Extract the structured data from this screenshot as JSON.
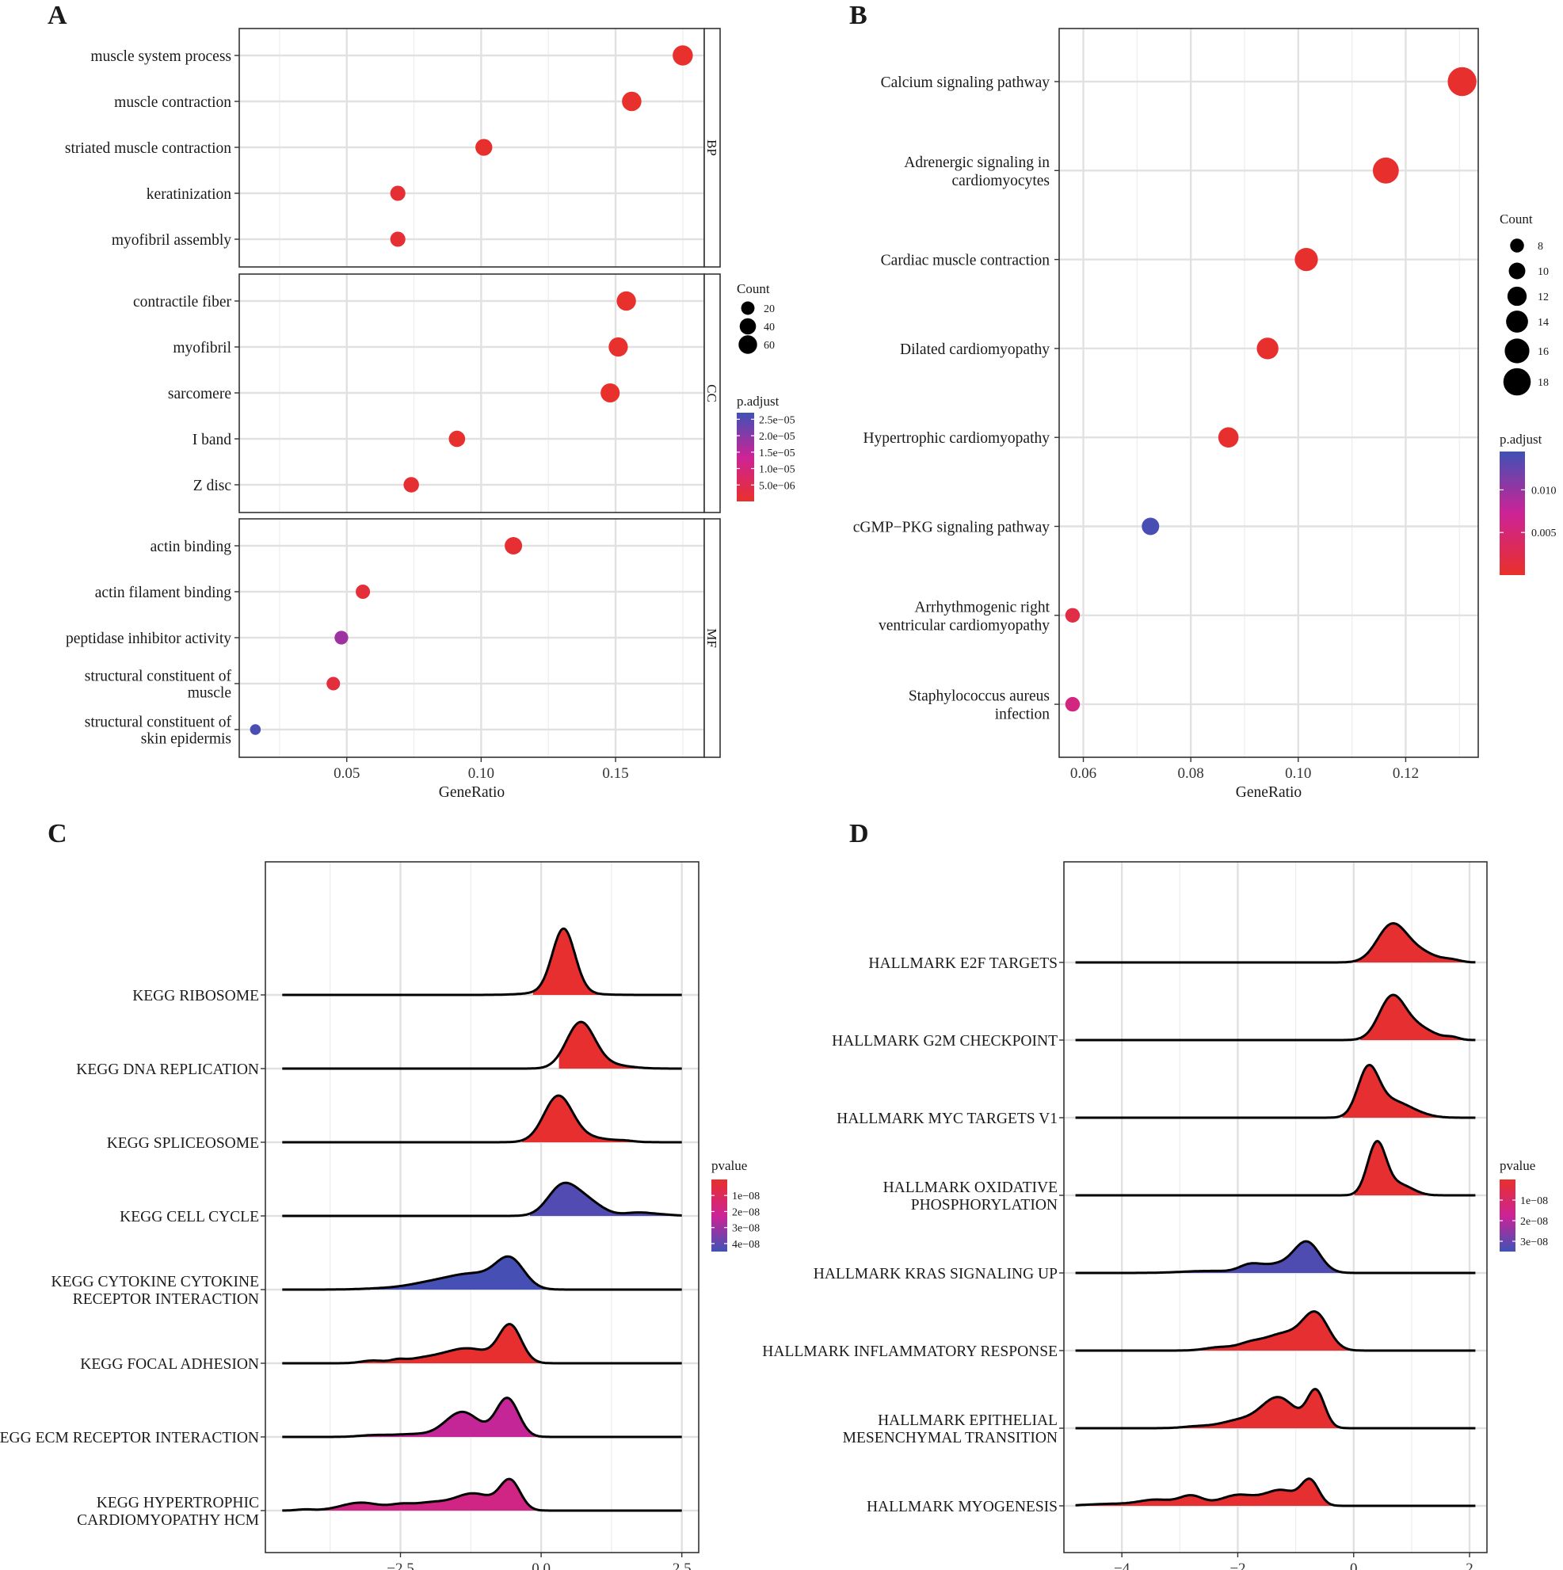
{
  "panels": {
    "A": {
      "label": "A"
    },
    "B": {
      "label": "B"
    },
    "C": {
      "label": "C"
    },
    "D": {
      "label": "D"
    }
  },
  "chart_data": [
    {
      "panel": "A",
      "type": "scatter",
      "subtype": "faceted-dotplot",
      "xlabel": "GeneRatio",
      "ylabel": "",
      "xlim": [
        0.01,
        0.183
      ],
      "xticks": [
        0.05,
        0.1,
        0.15
      ],
      "xtick_labels": [
        "0.05",
        "0.10",
        "0.15"
      ],
      "facets": [
        {
          "name": "BP",
          "terms": [
            {
              "label": "muscle system process",
              "x": 0.175,
              "count": 66,
              "p_adjust": 2e-07
            },
            {
              "label": "muscle contraction",
              "x": 0.156,
              "count": 59,
              "p_adjust": 2e-07
            },
            {
              "label": "striated muscle contraction",
              "x": 0.101,
              "count": 38,
              "p_adjust": 5e-07
            },
            {
              "label": "keratinization",
              "x": 0.069,
              "count": 26,
              "p_adjust": 1e-06
            },
            {
              "label": "myofibril assembly",
              "x": 0.069,
              "count": 26,
              "p_adjust": 1e-06
            }
          ]
        },
        {
          "name": "CC",
          "terms": [
            {
              "label": "contractile fiber",
              "x": 0.154,
              "count": 58,
              "p_adjust": 2e-07
            },
            {
              "label": "myofibril",
              "x": 0.151,
              "count": 57,
              "p_adjust": 2e-07
            },
            {
              "label": "sarcomere",
              "x": 0.148,
              "count": 56,
              "p_adjust": 2e-07
            },
            {
              "label": "I band",
              "x": 0.091,
              "count": 34,
              "p_adjust": 5e-07
            },
            {
              "label": "Z disc",
              "x": 0.074,
              "count": 28,
              "p_adjust": 1e-06
            }
          ]
        },
        {
          "name": "MF",
          "terms": [
            {
              "label": "actin binding",
              "x": 0.112,
              "count": 42,
              "p_adjust": 1e-06
            },
            {
              "label": "actin filament binding",
              "x": 0.056,
              "count": 21,
              "p_adjust": 2e-06
            },
            {
              "label": "peptidase inhibitor activity",
              "x": 0.048,
              "count": 18,
              "p_adjust": 1.8e-05
            },
            {
              "label": "structural constituent of\nmuscle",
              "x": 0.045,
              "count": 17,
              "p_adjust": 2.5e-06
            },
            {
              "label": "structural constituent of\nskin epidermis",
              "x": 0.016,
              "count": 6,
              "p_adjust": 2.6e-05
            }
          ]
        }
      ],
      "legend_count": {
        "title": "Count",
        "values": [
          20,
          40,
          60
        ],
        "labels": [
          "20",
          "40",
          "60"
        ]
      },
      "legend_color": {
        "title": "p.adjust",
        "range": [
          0,
          2.7e-05
        ],
        "ticks": [
          2.5e-05,
          2e-05,
          1.5e-05,
          1e-05,
          5e-06
        ],
        "labels": [
          "2.5e−05",
          "2.0e−05",
          "1.5e−05",
          "1.0e−05",
          "5.0e−06"
        ],
        "low_color": "#e8302a",
        "high_color": "#3f51b5"
      },
      "legend_position": "right"
    },
    {
      "panel": "B",
      "type": "scatter",
      "subtype": "dotplot",
      "xlabel": "GeneRatio",
      "ylabel": "",
      "xlim": [
        0.0555,
        0.1335
      ],
      "xticks": [
        0.06,
        0.08,
        0.1,
        0.12
      ],
      "xtick_labels": [
        "0.06",
        "0.08",
        "0.10",
        "0.12"
      ],
      "terms": [
        {
          "label": "Calcium signaling pathway",
          "x": 0.1305,
          "count": 18,
          "p_adjust": 0.0003
        },
        {
          "label": "Adrenergic signaling in\ncardiomyocytes",
          "x": 0.1163,
          "count": 16,
          "p_adjust": 0.0003
        },
        {
          "label": "Cardiac muscle contraction",
          "x": 0.1015,
          "count": 14,
          "p_adjust": 0.0003
        },
        {
          "label": "Dilated cardiomyopathy",
          "x": 0.0943,
          "count": 13,
          "p_adjust": 0.0003
        },
        {
          "label": "Hypertrophic cardiomyopathy",
          "x": 0.087,
          "count": 12,
          "p_adjust": 0.0003
        },
        {
          "label": "cGMP−PKG signaling pathway",
          "x": 0.0725,
          "count": 10,
          "p_adjust": 0.014
        },
        {
          "label": "Arrhythmogenic right\nventricular cardiomyopathy",
          "x": 0.058,
          "count": 8,
          "p_adjust": 0.0018
        },
        {
          "label": "Staphylococcus aureus\ninfection",
          "x": 0.058,
          "count": 8,
          "p_adjust": 0.0058
        }
      ],
      "legend_count": {
        "title": "Count",
        "values": [
          8,
          10,
          12,
          14,
          16,
          18
        ],
        "labels": [
          "8",
          "10",
          "12",
          "14",
          "16",
          "18"
        ]
      },
      "legend_color": {
        "title": "p.adjust",
        "range": [
          0.0,
          0.0145
        ],
        "ticks": [
          0.01,
          0.005
        ],
        "labels": [
          "0.010",
          "0.005"
        ],
        "low_color": "#e8302a",
        "high_color": "#3f51b5"
      },
      "legend_position": "right"
    },
    {
      "panel": "C",
      "type": "area",
      "subtype": "ridgeline",
      "xlabel": "",
      "ylabel": "",
      "xlim": [
        -4.9,
        2.8
      ],
      "xticks": [
        -2.5,
        0.0,
        2.5
      ],
      "xtick_labels": [
        "−2.5",
        "0.0",
        "2.5"
      ],
      "series": [
        {
          "name": "KEGG RIBOSOME",
          "pvalue": 1e-09,
          "range": [
            -4.6,
            2.5
          ],
          "fill_from": -0.15,
          "height": 2.2,
          "components": [
            [
              0.4,
              0.2,
              1.0
            ],
            [
              0.3,
              0.45,
              0.05
            ]
          ]
        },
        {
          "name": "KEGG DNA REPLICATION",
          "pvalue": 1e-09,
          "range": [
            -4.6,
            2.5
          ],
          "fill_from": 0.3,
          "height": 1.55,
          "components": [
            [
              0.7,
              0.25,
              1.0
            ],
            [
              1.2,
              0.35,
              0.08
            ]
          ]
        },
        {
          "name": "KEGG SPLICEOSOME",
          "pvalue": 1e-09,
          "range": [
            -4.6,
            2.5
          ],
          "fill_from": -0.35,
          "height": 1.55,
          "components": [
            [
              0.3,
              0.25,
              1.0
            ],
            [
              0.7,
              0.45,
              0.12
            ],
            [
              1.5,
              0.15,
              0.02
            ]
          ]
        },
        {
          "name": "KEGG CELL CYCLE",
          "pvalue": 4.2e-08,
          "range": [
            -4.6,
            2.5
          ],
          "fill_from": -0.2,
          "height": 1.1,
          "components": [
            [
              0.35,
              0.25,
              0.85
            ],
            [
              0.75,
              0.3,
              0.55
            ],
            [
              1.7,
              0.22,
              0.1
            ],
            [
              2.1,
              0.25,
              0.05
            ]
          ]
        },
        {
          "name": "KEGG CYTOKINE CYTOKINE\nRECEPTOR INTERACTION",
          "pvalue": 4.4e-08,
          "range": [
            -4.6,
            2.5
          ],
          "fill_from": -3.3,
          "height": 1.1,
          "components": [
            [
              -0.55,
              0.25,
              1.0
            ],
            [
              -1.2,
              0.45,
              0.55
            ],
            [
              -2.0,
              0.4,
              0.2
            ],
            [
              -2.8,
              0.4,
              0.04
            ]
          ]
        },
        {
          "name": "KEGG FOCAL ADHESION",
          "pvalue": 1e-09,
          "range": [
            -4.6,
            2.5
          ],
          "fill_from": -3.4,
          "height": 1.3,
          "components": [
            [
              -0.55,
              0.2,
              1.0
            ],
            [
              -1.3,
              0.4,
              0.4
            ],
            [
              -2.1,
              0.35,
              0.12
            ],
            [
              -3.0,
              0.2,
              0.07
            ],
            [
              -2.55,
              0.12,
              0.06
            ]
          ]
        },
        {
          "name": "KEGG ECM RECEPTOR INTERACTION",
          "pvalue": 2.4e-08,
          "range": [
            -4.6,
            2.5
          ],
          "fill_from": -3.6,
          "height": 1.3,
          "components": [
            [
              -0.6,
              0.2,
              1.0
            ],
            [
              -1.4,
              0.3,
              0.65
            ],
            [
              -2.3,
              0.35,
              0.07
            ],
            [
              -3.0,
              0.25,
              0.04
            ]
          ]
        },
        {
          "name": "KEGG HYPERTROPHIC\nCARDIOMYOPATHY HCM",
          "pvalue": 1.9e-08,
          "range": [
            -4.6,
            2.5
          ],
          "fill_from": -4.6,
          "height": 1.05,
          "components": [
            [
              -0.55,
              0.18,
              1.0
            ],
            [
              -1.2,
              0.35,
              0.6
            ],
            [
              -2.0,
              0.3,
              0.25
            ],
            [
              -3.2,
              0.35,
              0.28
            ],
            [
              -2.5,
              0.2,
              0.15
            ],
            [
              -4.2,
              0.15,
              0.04
            ]
          ]
        }
      ],
      "legend_color": {
        "title": "pvalue",
        "range": [
          0,
          4.5e-08
        ],
        "ticks": [
          1e-08,
          2e-08,
          3e-08,
          4e-08
        ],
        "labels": [
          "1e−08",
          "2e−08",
          "3e−08",
          "4e−08"
        ],
        "low_color": "#e8302a",
        "high_color": "#3f51b5"
      },
      "legend_position": "right"
    },
    {
      "panel": "D",
      "type": "area",
      "subtype": "ridgeline",
      "xlabel": "",
      "ylabel": "",
      "xlim": [
        -5.0,
        2.3
      ],
      "xticks": [
        -4,
        -2,
        0,
        2
      ],
      "xtick_labels": [
        "−4",
        "−2",
        "0",
        "2"
      ],
      "series": [
        {
          "name": "HALLMARK E2F TARGETS",
          "pvalue": 1e-09,
          "range": [
            -4.8,
            2.1
          ],
          "fill_from": 0.0,
          "height": 1.3,
          "components": [
            [
              0.65,
              0.25,
              1.0
            ],
            [
              1.1,
              0.3,
              0.3
            ],
            [
              1.7,
              0.15,
              0.06
            ]
          ]
        },
        {
          "name": "HALLMARK G2M CHECKPOINT",
          "pvalue": 1e-09,
          "range": [
            -4.8,
            2.1
          ],
          "fill_from": 0.1,
          "height": 1.5,
          "components": [
            [
              0.65,
              0.22,
              1.0
            ],
            [
              1.05,
              0.3,
              0.35
            ],
            [
              1.7,
              0.12,
              0.06
            ]
          ]
        },
        {
          "name": "HALLMARK MYC TARGETS V1",
          "pvalue": 1e-09,
          "range": [
            -4.8,
            2.1
          ],
          "fill_from": -0.2,
          "height": 1.75,
          "components": [
            [
              0.25,
              0.18,
              1.0
            ],
            [
              0.65,
              0.3,
              0.35
            ],
            [
              1.1,
              0.25,
              0.05
            ]
          ]
        },
        {
          "name": "HALLMARK OXIDATIVE\nPHOSPHORYLATION",
          "pvalue": 1e-09,
          "range": [
            -4.8,
            2.1
          ],
          "fill_from": 0.0,
          "height": 1.8,
          "components": [
            [
              0.4,
              0.16,
              1.0
            ],
            [
              0.8,
              0.22,
              0.2
            ]
          ]
        },
        {
          "name": "HALLMARK KRAS SIGNALING UP",
          "pvalue": 3.3e-08,
          "range": [
            -4.8,
            2.1
          ],
          "fill_from": -3.0,
          "height": 1.05,
          "components": [
            [
              -0.8,
              0.22,
              1.0
            ],
            [
              -1.3,
              0.35,
              0.3
            ],
            [
              -1.8,
              0.18,
              0.2
            ],
            [
              -2.5,
              0.45,
              0.07
            ]
          ]
        },
        {
          "name": "HALLMARK INFLAMMATORY RESPONSE",
          "pvalue": 1e-09,
          "range": [
            -4.8,
            2.1
          ],
          "fill_from": -3.0,
          "height": 1.3,
          "components": [
            [
              -0.65,
              0.22,
              1.0
            ],
            [
              -1.2,
              0.35,
              0.5
            ],
            [
              -1.8,
              0.2,
              0.15
            ],
            [
              -2.3,
              0.25,
              0.1
            ]
          ]
        },
        {
          "name": "HALLMARK EPITHELIAL\nMESENCHYMAL TRANSITION",
          "pvalue": 1e-09,
          "range": [
            -4.8,
            2.1
          ],
          "fill_from": -3.0,
          "height": 1.3,
          "components": [
            [
              -0.65,
              0.15,
              1.0
            ],
            [
              -1.3,
              0.3,
              0.85
            ],
            [
              -2.0,
              0.3,
              0.2
            ],
            [
              -2.7,
              0.25,
              0.05
            ]
          ]
        },
        {
          "name": "HALLMARK MYOGENESIS",
          "pvalue": 1e-09,
          "range": [
            -4.8,
            2.1
          ],
          "fill_from": -4.8,
          "height": 0.9,
          "components": [
            [
              -0.75,
              0.15,
              1.0
            ],
            [
              -1.25,
              0.28,
              0.65
            ],
            [
              -2.0,
              0.3,
              0.45
            ],
            [
              -2.8,
              0.2,
              0.4
            ],
            [
              -3.4,
              0.3,
              0.25
            ],
            [
              -4.2,
              0.4,
              0.08
            ]
          ]
        }
      ],
      "legend_color": {
        "title": "pvalue",
        "range": [
          0,
          3.5e-08
        ],
        "ticks": [
          1e-08,
          2e-08,
          3e-08
        ],
        "labels": [
          "1e−08",
          "2e−08",
          "3e−08"
        ],
        "low_color": "#e8302a",
        "high_color": "#3f51b5"
      },
      "legend_position": "right"
    }
  ]
}
